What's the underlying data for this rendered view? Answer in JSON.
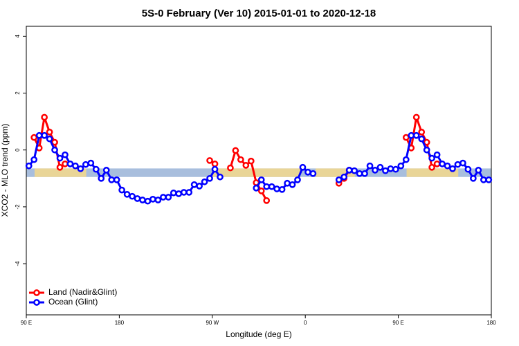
{
  "chart_data": {
    "type": "line",
    "title": "5S-0 February (Ver 10)   2015-01-01 to 2020-12-18",
    "xlabel": "Longitude (deg E)",
    "ylabel": "XCO2 - MLO trend (ppm)",
    "xlim": [
      90,
      540
    ],
    "ylim": [
      -5.8,
      4.35
    ],
    "xticks": [
      {
        "value": 90,
        "label": "90 E"
      },
      180,
      {
        "value": 270,
        "label": "90 W"
      },
      {
        "value": 360,
        "label": "0"
      },
      {
        "value": 450,
        "label": "90 E"
      },
      {
        "value": 540,
        "label": "180"
      }
    ],
    "yticks": [
      -4,
      -2,
      0,
      2,
      4
    ],
    "legend": "bottom-left",
    "band": {
      "ylim": [
        -0.95,
        -0.65
      ],
      "color": "#a8bedd",
      "land_color": "#f5d98b",
      "land_ranges": [
        [
          98,
          148
        ],
        [
          270,
          355
        ],
        [
          370,
          408
        ],
        [
          458,
          508
        ]
      ]
    },
    "x": [
      92.5,
      97.5,
      102.5,
      107.5,
      112.5,
      117.5,
      122.5,
      127.5,
      132.5,
      137.5,
      142.5,
      147.5,
      152.5,
      157.5,
      162.5,
      167.5,
      172.5,
      177.5,
      182.5,
      187.5,
      192.5,
      197.5,
      202.5,
      207.5,
      212.5,
      217.5,
      222.5,
      227.5,
      232.5,
      237.5,
      242.5,
      247.5,
      252.5,
      257.5,
      262.5,
      267.5,
      272.5,
      277.5,
      282.5,
      287.5,
      292.5,
      297.5,
      302.5,
      307.5,
      312.5,
      317.5,
      322.5,
      327.5,
      332.5,
      337.5,
      342.5,
      347.5,
      352.5,
      357.5,
      362.5,
      367.5,
      372.5,
      377.5,
      382.5,
      387.5,
      392.5,
      397.5,
      402.5,
      407.5,
      412.5,
      417.5,
      422.5,
      427.5,
      432.5,
      437.5,
      442.5,
      447.5,
      452.5,
      457.5,
      462.5,
      467.5,
      472.5,
      477.5,
      482.5,
      487.5,
      492.5,
      497.5,
      502.5,
      507.5,
      512.5,
      517.5,
      522.5,
      527.5,
      532.5,
      537.5
    ],
    "series": [
      {
        "name": "Land (Nadir&Glint)",
        "color": "#ff0000",
        "values": [
          null,
          0.44,
          0.07,
          1.15,
          0.63,
          0.27,
          -0.61,
          -0.49,
          null,
          null,
          null,
          null,
          null,
          null,
          null,
          null,
          null,
          null,
          null,
          null,
          null,
          null,
          null,
          null,
          null,
          null,
          null,
          null,
          null,
          null,
          null,
          null,
          null,
          null,
          null,
          -0.37,
          -0.49,
          null,
          null,
          -0.63,
          -0.02,
          -0.34,
          -0.54,
          -0.39,
          -1.15,
          -1.44,
          -1.78,
          null,
          null,
          null,
          null,
          null,
          null,
          null,
          null,
          null,
          null,
          null,
          null,
          null,
          -1.17,
          -1.0,
          -0.71,
          null,
          null,
          null,
          null,
          null,
          null,
          null,
          null,
          null,
          null,
          0.44,
          0.07,
          1.15,
          0.63,
          0.27,
          -0.61,
          -0.49,
          null,
          null,
          null,
          null,
          null,
          null,
          null,
          null,
          null,
          null
        ]
      },
      {
        "name": "Ocean (Glint)",
        "color": "#0000ff",
        "values": [
          -0.56,
          -0.34,
          0.51,
          0.51,
          0.39,
          0,
          -0.29,
          -0.17,
          -0.49,
          -0.56,
          -0.66,
          -0.51,
          -0.46,
          -0.68,
          -1.0,
          -0.71,
          -1.05,
          -1.05,
          -1.41,
          -1.56,
          -1.63,
          -1.71,
          -1.76,
          -1.8,
          -1.73,
          -1.76,
          -1.66,
          -1.66,
          -1.51,
          -1.54,
          -1.49,
          -1.49,
          -1.22,
          -1.27,
          -1.12,
          -1.0,
          -0.68,
          -0.95,
          null,
          null,
          null,
          null,
          null,
          null,
          -1.34,
          -1.05,
          -1.29,
          -1.29,
          -1.37,
          -1.39,
          -1.17,
          -1.22,
          -1.05,
          -0.61,
          -0.78,
          -0.83,
          null,
          null,
          null,
          null,
          -1.05,
          -0.95,
          -0.71,
          -0.73,
          -0.83,
          -0.83,
          -0.56,
          -0.71,
          -0.61,
          -0.73,
          -0.66,
          -0.68,
          -0.56,
          -0.34,
          0.51,
          0.51,
          0.39,
          0,
          -0.29,
          -0.17,
          -0.49,
          -0.56,
          -0.66,
          -0.51,
          -0.46,
          -0.68,
          -1.0,
          -0.71,
          -1.05,
          -1.05
        ]
      }
    ]
  }
}
